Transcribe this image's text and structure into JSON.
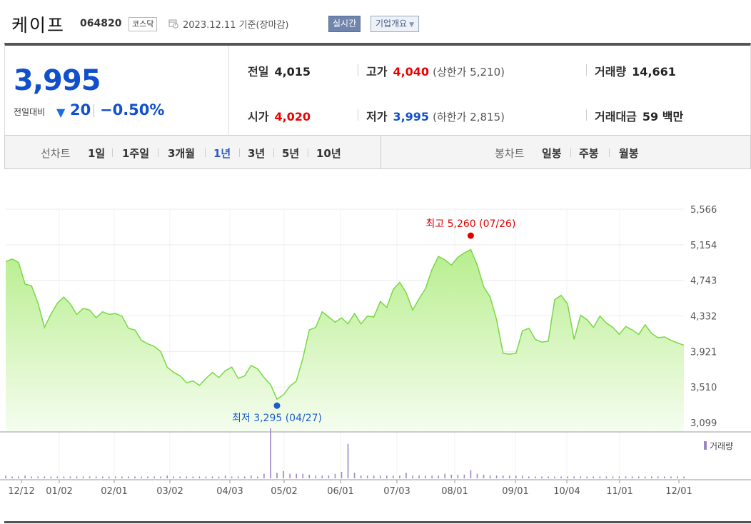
{
  "header": {
    "name": "케이프",
    "code": "064820",
    "market": "코스닥",
    "date_text": "2023.12.11  기준(장마감)",
    "realtime_label": "실시간",
    "company_label": "기업개요"
  },
  "price": {
    "current": "3,995",
    "change_label": "전일대비",
    "change_value": "20",
    "change_pct": "−0.50%",
    "direction": "down"
  },
  "stats": {
    "prev_label": "전일",
    "prev_value": "4,015",
    "open_label": "시가",
    "open_value": "4,020",
    "high_label": "고가",
    "high_value": "4,040",
    "upper_limit": "(상한가 5,210)",
    "low_label": "저가",
    "low_value": "3,995",
    "lower_limit": "(하한가 2,815)",
    "volume_label": "거래량",
    "volume_value": "14,661",
    "amount_label": "거래대금",
    "amount_value": "59 백만"
  },
  "periods": {
    "line_label": "선차트",
    "line_items": [
      "1일",
      "1주일",
      "3개월",
      "1년",
      "3년",
      "5년",
      "10년"
    ],
    "active": "1년",
    "candle_label": "봉차트",
    "candle_items": [
      "일봉",
      "주봉",
      "월봉"
    ]
  },
  "colors": {
    "up": "#e00000",
    "down": "#1150cc",
    "line": "#77d943",
    "volume": "#9b86c7"
  },
  "chart_data": {
    "type": "area",
    "y_ticks": [
      "5,566",
      "5,154",
      "4,743",
      "4,332",
      "3,921",
      "3,510",
      "3,099"
    ],
    "ylim": [
      3099,
      5566
    ],
    "x_ticks": [
      "12/12",
      "01/02",
      "02/01",
      "03/02",
      "04/03",
      "05/02",
      "06/01",
      "07/03",
      "08/01",
      "09/01",
      "10/04",
      "11/01",
      "12/01"
    ],
    "high_label": "최고 5,260 (07/26)",
    "low_label": "최저 3,295 (04/27)",
    "high_point": 5260,
    "low_point": 3295,
    "volume_legend": "거래량",
    "values": [
      4960,
      4990,
      4950,
      4700,
      4680,
      4480,
      4200,
      4350,
      4480,
      4550,
      4470,
      4350,
      4420,
      4400,
      4310,
      4380,
      4350,
      4360,
      4330,
      4190,
      4170,
      4050,
      4010,
      3980,
      3920,
      3740,
      3680,
      3640,
      3560,
      3580,
      3530,
      3610,
      3680,
      3620,
      3700,
      3740,
      3610,
      3640,
      3760,
      3720,
      3620,
      3540,
      3370,
      3420,
      3520,
      3580,
      3840,
      4170,
      4200,
      4380,
      4320,
      4260,
      4310,
      4240,
      4360,
      4240,
      4330,
      4320,
      4500,
      4430,
      4640,
      4720,
      4600,
      4400,
      4530,
      4650,
      4870,
      5020,
      4980,
      4920,
      5010,
      5060,
      5100,
      4920,
      4670,
      4550,
      4290,
      3900,
      3890,
      3900,
      4160,
      4190,
      4060,
      4030,
      4040,
      4520,
      4570,
      4470,
      4060,
      4340,
      4290,
      4200,
      4330,
      4250,
      4200,
      4120,
      4210,
      4170,
      4120,
      4230,
      4130,
      4080,
      4090,
      4050,
      4020,
      3995
    ],
    "volumes": [
      3,
      2,
      2,
      3,
      2,
      2,
      2,
      2,
      2,
      2,
      2,
      2,
      2,
      2,
      2,
      2,
      2,
      2,
      2,
      2,
      2,
      2,
      2,
      2,
      2,
      3,
      2,
      2,
      2,
      2,
      2,
      2,
      2,
      2,
      3,
      2,
      2,
      2,
      3,
      2,
      5,
      55,
      6,
      8,
      5,
      5,
      5,
      4,
      3,
      3,
      3,
      5,
      7,
      38,
      6,
      3,
      3,
      3,
      3,
      3,
      3,
      3,
      6,
      3,
      3,
      3,
      3,
      3,
      5,
      4,
      4,
      4,
      9,
      5,
      4,
      3,
      3,
      3,
      3,
      3,
      3,
      2,
      2,
      2,
      2,
      2,
      2,
      2,
      2,
      2,
      2,
      2,
      2,
      2,
      2,
      2,
      2,
      2,
      2,
      2,
      2,
      2,
      2,
      2,
      2,
      2
    ],
    "volume_max": 55
  }
}
